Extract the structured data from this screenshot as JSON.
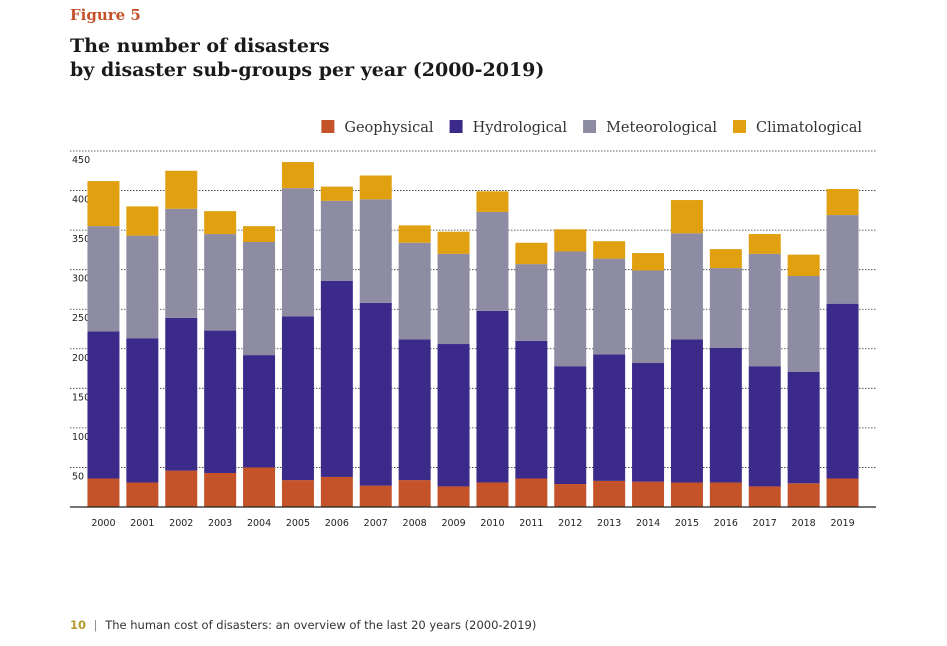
{
  "figure_label": "Figure 5",
  "title_lines": [
    "The number of disasters",
    "by disaster sub-groups per year (2000-2019)"
  ],
  "footer": {
    "page_number": "10",
    "separator": "|",
    "text": "The human cost of disasters: an overview of the last 20 years (2000-2019)"
  },
  "chart_data": {
    "type": "bar",
    "stacked": true,
    "categories": [
      "2000",
      "2001",
      "2002",
      "2003",
      "2004",
      "2005",
      "2006",
      "2007",
      "2008",
      "2009",
      "2010",
      "2011",
      "2012",
      "2013",
      "2014",
      "2015",
      "2016",
      "2017",
      "2018",
      "2019"
    ],
    "series": [
      {
        "name": "Geophysical",
        "color": "#c4532a",
        "values": [
          36,
          31,
          46,
          43,
          50,
          34,
          38,
          27,
          34,
          26,
          31,
          36,
          29,
          33,
          32,
          31,
          31,
          26,
          30,
          36
        ]
      },
      {
        "name": "Hydrological",
        "color": "#3b2a8a",
        "values": [
          186,
          182,
          193,
          180,
          142,
          207,
          248,
          231,
          178,
          180,
          217,
          174,
          149,
          160,
          150,
          181,
          170,
          152,
          141,
          221
        ]
      },
      {
        "name": "Meteorological",
        "color": "#8d8ca3",
        "values": [
          133,
          130,
          138,
          122,
          143,
          162,
          101,
          131,
          122,
          114,
          125,
          97,
          145,
          121,
          117,
          134,
          101,
          142,
          121,
          112
        ]
      },
      {
        "name": "Climatological",
        "color": "#e0a010",
        "values": [
          57,
          37,
          48,
          29,
          20,
          33,
          18,
          30,
          22,
          28,
          26,
          27,
          28,
          22,
          22,
          42,
          24,
          25,
          27,
          33
        ]
      }
    ],
    "yticks": [
      50,
      100,
      150,
      200,
      250,
      300,
      350,
      400,
      450
    ],
    "ylim": [
      0,
      450
    ],
    "grid": true,
    "legend_position": "top-right"
  }
}
